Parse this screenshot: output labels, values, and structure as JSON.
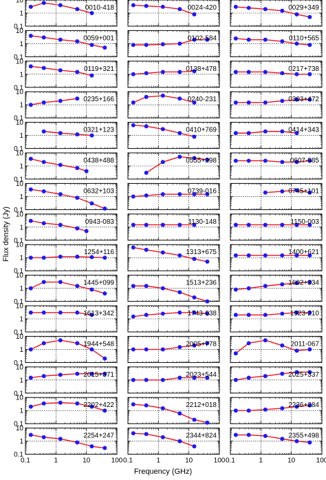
{
  "chart_data": {
    "type": "line",
    "ylabel": "Flux density (Jy)",
    "xlabel": "Frequency (GHz)",
    "xscale": "log",
    "yscale": "log",
    "xlim": [
      0.1,
      100
    ],
    "ylim": [
      0.1,
      10
    ],
    "xticks": [
      0.1,
      1,
      10,
      100
    ],
    "xtick_labels": [
      "0.1",
      "1",
      "10",
      "100"
    ],
    "yticks": [
      0.1,
      1,
      10
    ],
    "ytick_labels": [
      "0.1",
      "1",
      "10"
    ],
    "grid": true,
    "line_color": "#e8141c",
    "marker_color": "#1a1aff",
    "panels": [
      {
        "name": "0010-418",
        "points": [
          [
            0.15,
            3
          ],
          [
            0.4,
            6
          ],
          [
            1.4,
            4
          ],
          [
            5,
            2
          ],
          [
            15,
            1
          ]
        ]
      },
      {
        "name": "0024-420",
        "points": [
          [
            0.15,
            4
          ],
          [
            0.4,
            3.5
          ],
          [
            1.4,
            3
          ],
          [
            5,
            2
          ],
          [
            15,
            0.8
          ]
        ]
      },
      {
        "name": "0029+349",
        "points": [
          [
            0.15,
            3
          ],
          [
            0.4,
            2.5
          ],
          [
            1.4,
            2
          ],
          [
            5,
            1.5
          ],
          [
            15,
            0.8
          ],
          [
            40,
            0.5
          ]
        ]
      },
      {
        "name": "0059+001",
        "points": [
          [
            0.15,
            4
          ],
          [
            0.4,
            3
          ],
          [
            1.4,
            2
          ],
          [
            5,
            1.5
          ],
          [
            15,
            0.8
          ],
          [
            40,
            0.5
          ]
        ]
      },
      {
        "name": "0102-584",
        "points": [
          [
            0.15,
            0.8
          ],
          [
            0.4,
            0.8
          ],
          [
            1.4,
            0.9
          ],
          [
            5,
            1
          ],
          [
            15,
            2
          ],
          [
            40,
            2
          ]
        ]
      },
      {
        "name": "0110+565",
        "points": [
          [
            0.15,
            2.5
          ],
          [
            0.4,
            2
          ],
          [
            1.4,
            2
          ],
          [
            5,
            1.5
          ],
          [
            15,
            1
          ],
          [
            40,
            0.8
          ]
        ]
      },
      {
        "name": "0119+321",
        "points": [
          [
            0.15,
            4
          ],
          [
            0.4,
            3
          ],
          [
            1.4,
            2
          ],
          [
            5,
            1.5
          ],
          [
            15,
            0.8
          ]
        ]
      },
      {
        "name": "0138+478",
        "points": [
          [
            0.15,
            1
          ],
          [
            0.4,
            1.2
          ],
          [
            1.4,
            1.5
          ],
          [
            5,
            1.5
          ],
          [
            15,
            1.7
          ]
        ]
      },
      {
        "name": "0217+738",
        "points": [
          [
            0.15,
            1.5
          ],
          [
            0.4,
            1.5
          ],
          [
            1.4,
            1.5
          ],
          [
            5,
            1.2
          ],
          [
            15,
            1
          ],
          [
            40,
            1
          ]
        ]
      },
      {
        "name": "0235+166",
        "points": [
          [
            0.15,
            1
          ],
          [
            0.4,
            1.5
          ],
          [
            1.4,
            2
          ],
          [
            5,
            3
          ]
        ]
      },
      {
        "name": "0240-231",
        "points": [
          [
            0.15,
            1.5
          ],
          [
            0.4,
            4
          ],
          [
            1.4,
            5
          ],
          [
            5,
            3
          ],
          [
            15,
            1.5
          ]
        ]
      },
      {
        "name": "0303+472",
        "points": [
          [
            0.15,
            1.5
          ],
          [
            0.4,
            1.5
          ],
          [
            1.4,
            1.5
          ],
          [
            5,
            2
          ],
          [
            15,
            2.5
          ],
          [
            40,
            2.5
          ]
        ]
      },
      {
        "name": "0321+123",
        "points": [
          [
            0.4,
            2
          ],
          [
            1.4,
            1.5
          ],
          [
            5,
            1.2
          ],
          [
            15,
            1
          ]
        ]
      },
      {
        "name": "0410+769",
        "points": [
          [
            0.15,
            6
          ],
          [
            0.4,
            5
          ],
          [
            1.4,
            3
          ],
          [
            5,
            1.5
          ],
          [
            15,
            0.8
          ]
        ]
      },
      {
        "name": "0414+343",
        "points": [
          [
            0.15,
            1.5
          ],
          [
            0.4,
            1.5
          ],
          [
            1.4,
            2
          ],
          [
            5,
            2
          ],
          [
            15,
            1.5
          ]
        ]
      },
      {
        "name": "0438+488",
        "points": [
          [
            0.15,
            3.5
          ],
          [
            0.4,
            2
          ],
          [
            1.4,
            1.2
          ],
          [
            5,
            0.7
          ],
          [
            10,
            0.4
          ]
        ]
      },
      {
        "name": "0555+398",
        "points": [
          [
            0.4,
            0.3
          ],
          [
            1.4,
            2
          ],
          [
            5,
            5
          ],
          [
            15,
            4
          ],
          [
            40,
            3
          ]
        ]
      },
      {
        "name": "0607-085",
        "points": [
          [
            0.15,
            2.5
          ],
          [
            0.4,
            2.5
          ],
          [
            1.4,
            2.5
          ],
          [
            5,
            2
          ],
          [
            15,
            2
          ],
          [
            40,
            2.5
          ]
        ]
      },
      {
        "name": "0632+103",
        "points": [
          [
            0.15,
            3.5
          ],
          [
            0.4,
            2.5
          ],
          [
            1.4,
            1.5
          ],
          [
            5,
            0.8
          ],
          [
            15,
            0.3
          ],
          [
            40,
            0.12
          ]
        ]
      },
      {
        "name": "0739-016",
        "points": [
          [
            0.15,
            1
          ],
          [
            0.4,
            1.2
          ],
          [
            1.4,
            1.5
          ],
          [
            5,
            1.5
          ],
          [
            15,
            1.5
          ],
          [
            40,
            1.5
          ]
        ]
      },
      {
        "name": "0745+101",
        "points": [
          [
            1.4,
            2
          ],
          [
            5,
            2.5
          ],
          [
            15,
            3
          ],
          [
            40,
            2
          ]
        ]
      },
      {
        "name": "0943-083",
        "points": [
          [
            0.15,
            3
          ],
          [
            0.4,
            2
          ],
          [
            1.4,
            1.5
          ],
          [
            5,
            0.8
          ],
          [
            10,
            0.5
          ]
        ]
      },
      {
        "name": "1130-148",
        "points": [
          [
            0.15,
            1.5
          ],
          [
            0.4,
            1.5
          ],
          [
            1.4,
            1.5
          ],
          [
            5,
            1.5
          ],
          [
            15,
            1.5
          ]
        ]
      },
      {
        "name": "1150-003",
        "points": [
          [
            0.15,
            1.5
          ],
          [
            0.4,
            1.5
          ],
          [
            1.4,
            1.5
          ],
          [
            5,
            1.5
          ],
          [
            15,
            1.5
          ],
          [
            40,
            1.5
          ]
        ]
      },
      {
        "name": "1254+116",
        "points": [
          [
            0.15,
            1
          ],
          [
            0.4,
            1
          ],
          [
            1.4,
            1.2
          ],
          [
            5,
            1.2
          ],
          [
            15,
            1.1
          ],
          [
            40,
            1
          ]
        ]
      },
      {
        "name": "1313+675",
        "points": [
          [
            0.15,
            6
          ],
          [
            0.4,
            4
          ],
          [
            1.4,
            2.5
          ],
          [
            5,
            1.5
          ],
          [
            15,
            0.8
          ],
          [
            40,
            0.5
          ]
        ]
      },
      {
        "name": "1400+621",
        "points": [
          [
            0.15,
            1.5
          ],
          [
            0.4,
            1.5
          ],
          [
            1.4,
            1.5
          ],
          [
            5,
            1.5
          ],
          [
            15,
            1.5
          ],
          [
            40,
            1.5
          ]
        ]
      },
      {
        "name": "1445+099",
        "points": [
          [
            0.15,
            1
          ],
          [
            0.4,
            3
          ],
          [
            1.4,
            3
          ],
          [
            5,
            1.5
          ],
          [
            15,
            0.8
          ],
          [
            40,
            0.4
          ]
        ]
      },
      {
        "name": "1513+236",
        "points": [
          [
            0.15,
            1.5
          ],
          [
            0.4,
            1.5
          ],
          [
            1.4,
            1
          ],
          [
            5,
            0.5
          ],
          [
            15,
            0.2
          ],
          [
            40,
            0.1
          ]
        ]
      },
      {
        "name": "1602+334",
        "points": [
          [
            0.15,
            0.8
          ],
          [
            0.4,
            1
          ],
          [
            1.4,
            1.5
          ],
          [
            5,
            2
          ],
          [
            15,
            2.5
          ],
          [
            40,
            3
          ]
        ]
      },
      {
        "name": "1613+342",
        "points": [
          [
            0.15,
            3
          ],
          [
            0.4,
            3
          ],
          [
            1.4,
            3
          ],
          [
            5,
            3
          ],
          [
            15,
            2
          ]
        ]
      },
      {
        "name": "1743-038",
        "points": [
          [
            0.15,
            1.5
          ],
          [
            0.4,
            2
          ],
          [
            1.4,
            2.5
          ],
          [
            5,
            3
          ],
          [
            15,
            3
          ],
          [
            40,
            2.5
          ]
        ]
      },
      {
        "name": "1923-210",
        "points": [
          [
            0.15,
            2
          ],
          [
            0.4,
            2
          ],
          [
            1.4,
            2
          ],
          [
            5,
            2.5
          ],
          [
            15,
            3
          ],
          [
            40,
            3
          ]
        ]
      },
      {
        "name": "1944+548",
        "points": [
          [
            0.15,
            1
          ],
          [
            0.4,
            3
          ],
          [
            1.4,
            5
          ],
          [
            5,
            3
          ],
          [
            15,
            1
          ],
          [
            40,
            0.2
          ]
        ]
      },
      {
        "name": "2005+778",
        "points": [
          [
            0.15,
            1
          ],
          [
            0.4,
            1
          ],
          [
            1.4,
            1
          ],
          [
            5,
            1.5
          ],
          [
            15,
            2
          ],
          [
            40,
            3
          ]
        ]
      },
      {
        "name": "2011-067",
        "points": [
          [
            0.15,
            0.5
          ],
          [
            0.4,
            3
          ],
          [
            1.4,
            5
          ],
          [
            5,
            2
          ],
          [
            15,
            0.8
          ],
          [
            40,
            1
          ]
        ]
      },
      {
        "name": "2015+371",
        "points": [
          [
            0.15,
            1.5
          ],
          [
            0.4,
            2
          ],
          [
            1.4,
            2.5
          ],
          [
            5,
            3
          ],
          [
            15,
            3
          ],
          [
            40,
            3
          ]
        ]
      },
      {
        "name": "2023+544",
        "points": [
          [
            0.15,
            1
          ],
          [
            0.4,
            1
          ],
          [
            1.4,
            1
          ],
          [
            5,
            1.5
          ],
          [
            15,
            1.5
          ],
          [
            40,
            1.5
          ]
        ]
      },
      {
        "name": "2025+337",
        "points": [
          [
            0.15,
            1
          ],
          [
            0.4,
            1.5
          ],
          [
            1.4,
            2
          ],
          [
            5,
            3
          ],
          [
            15,
            4
          ],
          [
            40,
            4
          ]
        ]
      },
      {
        "name": "2202+422",
        "points": [
          [
            0.15,
            2
          ],
          [
            0.4,
            3.5
          ],
          [
            1.4,
            4
          ],
          [
            5,
            3.5
          ],
          [
            15,
            2
          ],
          [
            40,
            1
          ]
        ]
      },
      {
        "name": "2212+018",
        "points": [
          [
            0.15,
            3
          ],
          [
            0.4,
            2.5
          ],
          [
            1.4,
            1.5
          ],
          [
            5,
            0.6
          ],
          [
            15,
            0.2
          ],
          [
            40,
            0.12
          ]
        ]
      },
      {
        "name": "2236+284",
        "points": [
          [
            0.15,
            1
          ],
          [
            0.4,
            1
          ],
          [
            1.4,
            1.2
          ],
          [
            5,
            1.5
          ],
          [
            15,
            2
          ],
          [
            40,
            2.5
          ]
        ]
      },
      {
        "name": "2254+247",
        "points": [
          [
            0.15,
            3
          ],
          [
            0.4,
            2
          ],
          [
            1.4,
            1.5
          ],
          [
            5,
            0.8
          ],
          [
            15,
            0.4
          ],
          [
            40,
            0.3
          ]
        ]
      },
      {
        "name": "2344+824",
        "points": [
          [
            0.15,
            4
          ],
          [
            0.4,
            3.5
          ],
          [
            1.4,
            2
          ],
          [
            5,
            1
          ],
          [
            15,
            0.4
          ]
        ]
      },
      {
        "name": "2355+498",
        "points": [
          [
            0.15,
            3
          ],
          [
            0.4,
            3
          ],
          [
            1.4,
            2.5
          ],
          [
            5,
            1.5
          ],
          [
            15,
            1
          ],
          [
            40,
            0.8
          ]
        ]
      }
    ]
  }
}
